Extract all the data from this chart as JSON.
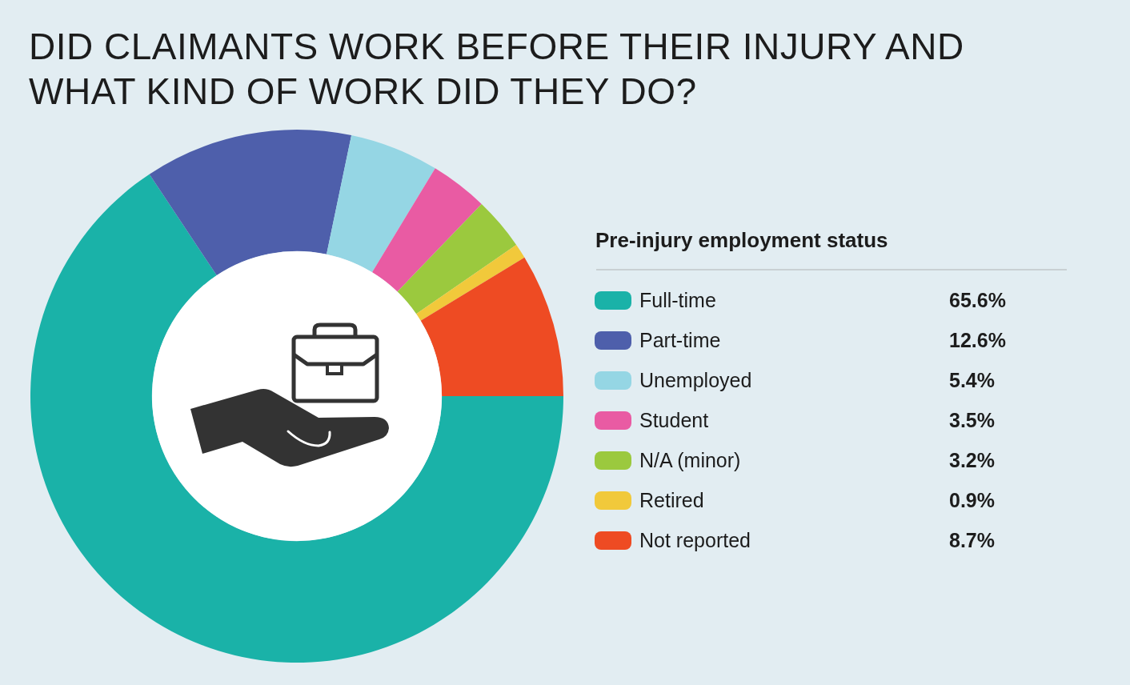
{
  "chart_data": {
    "type": "donut",
    "title": "DID CLAIMANTS WORK BEFORE THEIR INJURY AND WHAT KIND OF WORK DID THEY DO?",
    "legend_title": "Pre-injury employment status",
    "legend": "right",
    "categories": [
      "Full-time",
      "Part-time",
      "Unemployed",
      "Student",
      "N/A (minor)",
      "Retired",
      "Not reported"
    ],
    "values": [
      65.6,
      12.6,
      5.4,
      3.5,
      3.2,
      0.9,
      8.7
    ],
    "value_labels": [
      "65.6%",
      "12.6%",
      "5.4%",
      "3.5%",
      "3.2%",
      "0.9%",
      "8.7%"
    ],
    "colors": [
      "#1ab2a8",
      "#4e5fab",
      "#95d6e4",
      "#e95ba3",
      "#9bc93e",
      "#f1c93b",
      "#ee4b23"
    ]
  }
}
